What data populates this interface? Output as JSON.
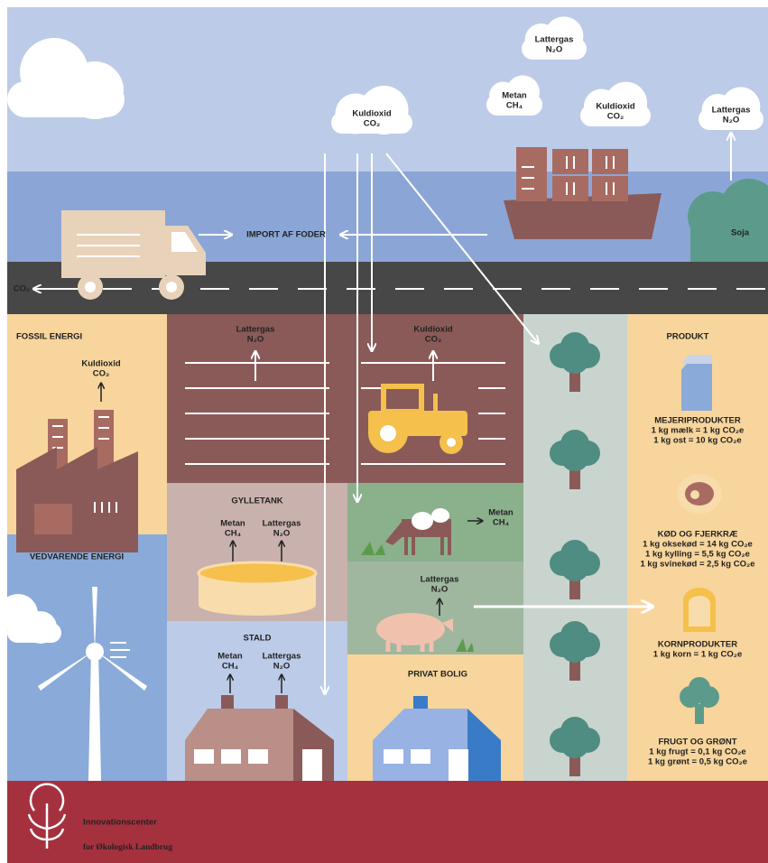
{
  "sky": {
    "clouds": [
      {
        "label": "Lattergas",
        "formula": "N₂O"
      },
      {
        "label": "Metan",
        "formula": "CH₄"
      },
      {
        "label": "Kuldioxid",
        "formula": "CO₂"
      },
      {
        "label": "Kuldioxid",
        "formula": "CO₂"
      },
      {
        "label": "Lattergas",
        "formula": "N₂O"
      }
    ]
  },
  "transport": {
    "import": "IMPORT AF FODER",
    "soja": "Soja",
    "road_emission": "CO₂"
  },
  "fossil": {
    "title": "FOSSIL ENERGI",
    "label": "Kuldioxid",
    "formula": "CO₂"
  },
  "renewable": {
    "title": "VEDVARENDE ENERGI"
  },
  "field": {
    "emissions": [
      {
        "label": "Lattergas",
        "formula": "N₂O"
      },
      {
        "label": "Kuldioxid",
        "formula": "CO₂"
      }
    ]
  },
  "slurry_tank": {
    "title": "GYLLETANK",
    "emissions": [
      {
        "label": "Metan",
        "formula": "CH₄"
      },
      {
        "label": "Lattergas",
        "formula": "N₂O"
      }
    ]
  },
  "barn": {
    "title": "STALD",
    "emissions": [
      {
        "label": "Metan",
        "formula": "CH₄"
      },
      {
        "label": "Lattergas",
        "formula": "N₂O"
      }
    ]
  },
  "cattle": {
    "label": "Metan",
    "formula": "CH₄"
  },
  "pigs": {
    "label": "Lattergas",
    "formula": "N₂O"
  },
  "house": {
    "title": "PRIVAT BOLIG"
  },
  "products": {
    "title": "PRODUKT",
    "items": [
      {
        "name": "MEJERIPRODUKTER",
        "lines": [
          "1 kg mælk = 1 kg CO₂e",
          "1 kg ost = 10 kg CO₂e"
        ]
      },
      {
        "name": "KØD OG FJERKRÆ",
        "lines": [
          "1 kg oksekød = 14 kg CO₂e",
          "1 kg kylling = 5,5 kg CO₂e",
          "1 kg svinekød = 2,5 kg CO₂e"
        ]
      },
      {
        "name": "KORNPRODUKTER",
        "lines": [
          "1 kg korn = 1 kg CO₂e"
        ]
      },
      {
        "name": "FRUGT OG GRØNT",
        "lines": [
          "1 kg frugt = 0,1 kg CO₂e",
          "1 kg grønt = 0,5 kg CO₂e"
        ]
      }
    ]
  },
  "footer": {
    "name": "Innovationscenter",
    "subtitle": "for Økologisk Landbrug"
  }
}
